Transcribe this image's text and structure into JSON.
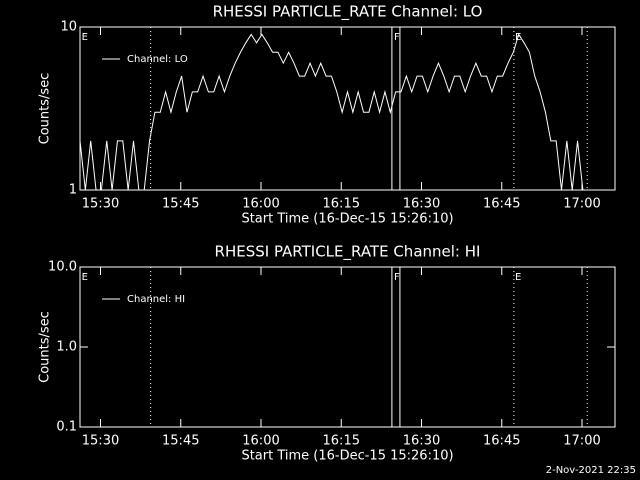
{
  "chart_data": [
    {
      "type": "line",
      "title": "RHESSI PARTICLE_RATE Channel: LO",
      "xlabel": "Start Time (16-Dec-15 15:26:10)",
      "ylabel": "Counts/sec",
      "xlim": [
        0,
        100
      ],
      "xticks": [
        {
          "value": 3.833,
          "label": "15:30"
        },
        {
          "value": 18.833,
          "label": "15:45"
        },
        {
          "value": 33.833,
          "label": "16:00"
        },
        {
          "value": 48.833,
          "label": "16:15"
        },
        {
          "value": 63.833,
          "label": "16:30"
        },
        {
          "value": 78.833,
          "label": "16:45"
        },
        {
          "value": 93.833,
          "label": "17:00"
        }
      ],
      "ylim": [
        1,
        10
      ],
      "yticks": [
        1,
        10
      ],
      "log_y": true,
      "legend": "upper left",
      "x": [
        0,
        1,
        2,
        3,
        4,
        5,
        6,
        7,
        8,
        9,
        10,
        11,
        12,
        13,
        14,
        15,
        16,
        17,
        18,
        19,
        20,
        21,
        22,
        23,
        24,
        25,
        26,
        27,
        28,
        29,
        30,
        31,
        32,
        33,
        34,
        35,
        36,
        37,
        38,
        39,
        40,
        41,
        42,
        43,
        44,
        45,
        46,
        47,
        48,
        49,
        50,
        51,
        52,
        53,
        54,
        55,
        56,
        57,
        58,
        59,
        60,
        61,
        62,
        63,
        64,
        65,
        66,
        67,
        68,
        69,
        70,
        71,
        72,
        73,
        74,
        75,
        76,
        77,
        78,
        79,
        80,
        81,
        82,
        83,
        84,
        85,
        86,
        87,
        88,
        89,
        90,
        91,
        92,
        93,
        94
      ],
      "series": [
        {
          "name": "Channel: LO",
          "color": "#ffffff",
          "values": [
            2,
            1,
            2,
            1,
            1,
            2,
            1,
            2,
            2,
            1,
            2,
            1,
            1,
            2,
            3,
            3,
            4,
            3,
            4,
            5,
            3,
            4,
            4,
            5,
            4,
            4,
            5,
            4,
            5,
            6,
            7,
            8,
            9,
            8,
            9,
            8,
            7,
            7,
            6,
            7,
            6,
            5,
            5,
            6,
            5,
            6,
            5,
            5,
            4,
            3,
            4,
            3,
            4,
            3,
            3,
            4,
            3,
            4,
            3,
            4,
            4,
            5,
            4,
            5,
            5,
            4,
            5,
            6,
            5,
            4,
            5,
            5,
            4,
            5,
            6,
            5,
            5,
            4,
            5,
            5,
            6,
            7,
            9,
            8,
            7,
            5,
            4,
            3,
            2,
            2,
            1,
            2,
            1,
            2,
            1
          ]
        }
      ],
      "events": [
        {
          "x": 0.3,
          "label": "E"
        },
        {
          "x": 58.7,
          "label": "F"
        },
        {
          "x": 81.3,
          "label": "E"
        }
      ],
      "event_lines": [
        {
          "x": 13.2,
          "style": "dotted"
        },
        {
          "x": 58.3,
          "style": "solid"
        },
        {
          "x": 59.8,
          "style": "solid"
        },
        {
          "x": 81.1,
          "style": "dotted"
        },
        {
          "x": 94.8,
          "style": "dotted"
        }
      ]
    },
    {
      "type": "line",
      "title": "RHESSI PARTICLE_RATE Channel: HI",
      "xlabel": "Start Time (16-Dec-15 15:26:10)",
      "ylabel": "Counts/sec",
      "xlim": [
        0,
        100
      ],
      "xticks": [
        {
          "value": 3.833,
          "label": "15:30"
        },
        {
          "value": 18.833,
          "label": "15:45"
        },
        {
          "value": 33.833,
          "label": "16:00"
        },
        {
          "value": 48.833,
          "label": "16:15"
        },
        {
          "value": 63.833,
          "label": "16:30"
        },
        {
          "value": 78.833,
          "label": "16:45"
        },
        {
          "value": 93.833,
          "label": "17:00"
        }
      ],
      "ylim": [
        0.1,
        10
      ],
      "yticks": [
        0.1,
        {
          "value": 1,
          "label": "1.0"
        },
        {
          "value": 10,
          "label": "10.0"
        }
      ],
      "log_y": true,
      "legend": "upper left",
      "x": [],
      "series": [
        {
          "name": "Channel: HI",
          "color": "#ffffff",
          "values": []
        }
      ],
      "events": [
        {
          "x": 0.3,
          "label": "E"
        },
        {
          "x": 58.7,
          "label": "F"
        },
        {
          "x": 81.3,
          "label": "E"
        }
      ],
      "event_lines": [
        {
          "x": 13.2,
          "style": "dotted"
        },
        {
          "x": 58.3,
          "style": "solid"
        },
        {
          "x": 59.8,
          "style": "solid"
        },
        {
          "x": 81.1,
          "style": "dotted"
        },
        {
          "x": 94.8,
          "style": "dotted"
        }
      ]
    }
  ],
  "footer": "2-Nov-2021 22:35"
}
